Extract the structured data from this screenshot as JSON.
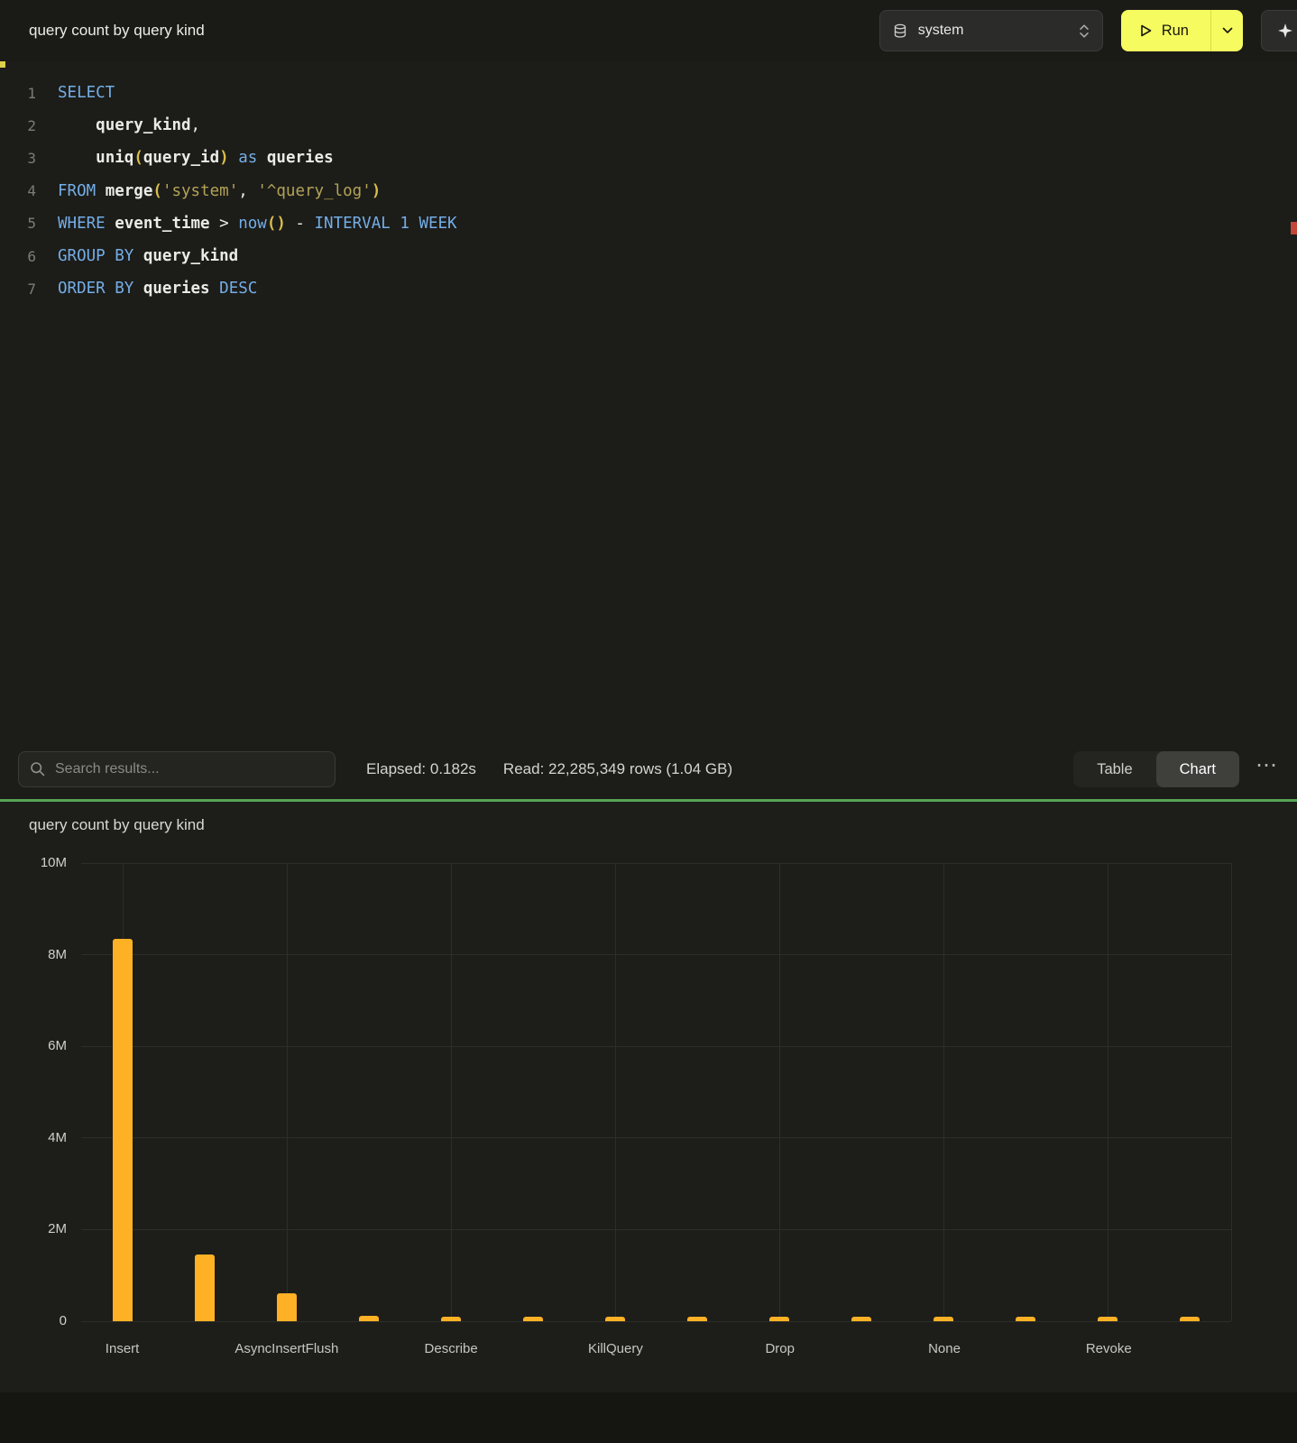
{
  "header": {
    "title": "query count by query kind",
    "database_selector": {
      "value": "system"
    },
    "run_button": {
      "label": "Run"
    }
  },
  "icons": {
    "database": "⛁",
    "play": "▷",
    "updown_chevrons": "⇅",
    "chevron_down": "⌄",
    "search": "⌕",
    "sparkle": "✦",
    "more": "⋯"
  },
  "editor": {
    "lines": [
      [
        {
          "t": "SELECT",
          "c": "kw"
        }
      ],
      [
        {
          "t": "    ",
          "c": "pl"
        },
        {
          "t": "query_kind",
          "c": "id"
        },
        {
          "t": ",",
          "c": "pl"
        }
      ],
      [
        {
          "t": "    ",
          "c": "pl"
        },
        {
          "t": "uniq",
          "c": "id"
        },
        {
          "t": "(",
          "c": "pr"
        },
        {
          "t": "query_id",
          "c": "id"
        },
        {
          "t": ")",
          "c": "pr"
        },
        {
          "t": " ",
          "c": "pl"
        },
        {
          "t": "as",
          "c": "kw"
        },
        {
          "t": " ",
          "c": "pl"
        },
        {
          "t": "queries",
          "c": "id"
        }
      ],
      [
        {
          "t": "FROM",
          "c": "kw"
        },
        {
          "t": " ",
          "c": "pl"
        },
        {
          "t": "merge",
          "c": "id"
        },
        {
          "t": "(",
          "c": "pr"
        },
        {
          "t": "'system'",
          "c": "str"
        },
        {
          "t": ", ",
          "c": "pl"
        },
        {
          "t": "'^query_log'",
          "c": "str"
        },
        {
          "t": ")",
          "c": "pr"
        }
      ],
      [
        {
          "t": "WHERE",
          "c": "kw"
        },
        {
          "t": " ",
          "c": "pl"
        },
        {
          "t": "event_time",
          "c": "id"
        },
        {
          "t": " > ",
          "c": "pl"
        },
        {
          "t": "now",
          "c": "kw"
        },
        {
          "t": "()",
          "c": "pr"
        },
        {
          "t": " - ",
          "c": "pl"
        },
        {
          "t": "INTERVAL",
          "c": "kw"
        },
        {
          "t": " ",
          "c": "pl"
        },
        {
          "t": "1",
          "c": "num"
        },
        {
          "t": " ",
          "c": "pl"
        },
        {
          "t": "WEEK",
          "c": "kw"
        }
      ],
      [
        {
          "t": "GROUP BY",
          "c": "kw"
        },
        {
          "t": " ",
          "c": "pl"
        },
        {
          "t": "query_kind",
          "c": "id"
        }
      ],
      [
        {
          "t": "ORDER BY",
          "c": "kw"
        },
        {
          "t": " ",
          "c": "pl"
        },
        {
          "t": "queries",
          "c": "id"
        },
        {
          "t": " ",
          "c": "pl"
        },
        {
          "t": "DESC",
          "c": "kw"
        }
      ]
    ]
  },
  "results_bar": {
    "search_placeholder": "Search results...",
    "elapsed": "Elapsed: 0.182s",
    "read": "Read: 22,285,349 rows (1.04 GB)",
    "view_toggle": {
      "table_label": "Table",
      "chart_label": "Chart",
      "active": "Chart"
    },
    "more_icon": "⋯"
  },
  "chart_section": {
    "title": "query count by query kind"
  },
  "chart_data": {
    "type": "bar",
    "title": "query count by query kind",
    "values": [
      8350000,
      1450000,
      620000,
      110000,
      100000,
      95000,
      95000,
      90000,
      90000,
      85000,
      85000,
      80000,
      80000,
      75000
    ],
    "x_tick_labels": [
      "Insert",
      "AsyncInsertFlush",
      "Describe",
      "KillQuery",
      "Drop",
      "None",
      "Revoke"
    ],
    "x_tick_positions": [
      0,
      2,
      4,
      6,
      8,
      10,
      12
    ],
    "ylim": [
      0,
      10000000
    ],
    "y_ticks": [
      {
        "v": 0,
        "label": "0"
      },
      {
        "v": 2000000,
        "label": "2M"
      },
      {
        "v": 4000000,
        "label": "4M"
      },
      {
        "v": 6000000,
        "label": "6M"
      },
      {
        "v": 8000000,
        "label": "8M"
      },
      {
        "v": 10000000,
        "label": "10M"
      }
    ],
    "bar_color": "#ffb125",
    "grid": true,
    "legend": false
  },
  "colors": {
    "accent_yellow": "#f6fb5f",
    "bar_amber": "#ffb125",
    "divider_green": "#55a455",
    "keyword_blue": "#74aee6",
    "string_olive": "#b3a356",
    "paren_yellow": "#d8bd49"
  }
}
